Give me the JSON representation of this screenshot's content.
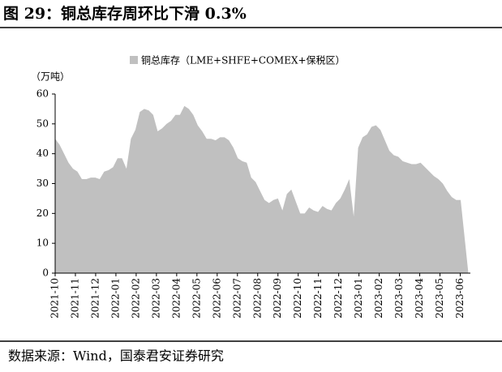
{
  "chart_data": {
    "type": "area",
    "title": "图 29：铜总库存周环比下滑 0.3%",
    "unit_label": "（万吨）",
    "source": "数据来源：Wind，国泰君安证券研究",
    "x": [
      0,
      0.22,
      0.44,
      0.66,
      0.88,
      1.1,
      1.32,
      1.54,
      1.76,
      1.98,
      2.2,
      2.42,
      2.64,
      2.86,
      3.08,
      3.3,
      3.52,
      3.74,
      3.96,
      4.18,
      4.4,
      4.62,
      4.84,
      5.06,
      5.28,
      5.5,
      5.72,
      5.94,
      6.16,
      6.38,
      6.6,
      6.82,
      7.04,
      7.26,
      7.48,
      7.7,
      7.92,
      8.14,
      8.36,
      8.58,
      8.8,
      9.02,
      9.24,
      9.46,
      9.68,
      9.9,
      10.12,
      10.34,
      10.56,
      10.78,
      11,
      11.22,
      11.44,
      11.66,
      11.88,
      12.1,
      12.32,
      12.54,
      12.76,
      12.98,
      13.2,
      13.42,
      13.64,
      13.86,
      14.08,
      14.3,
      14.52,
      14.74,
      14.96,
      15.18,
      15.4,
      15.62,
      15.84,
      16.06,
      16.28,
      16.5,
      16.72,
      16.94,
      17.16,
      17.38,
      17.6,
      17.82,
      18.04,
      18.26,
      18.48,
      18.7,
      18.92,
      19.14,
      19.36,
      19.58,
      19.8,
      20.02,
      20.4
    ],
    "series": [
      {
        "name": "铜总库存（LME+SHFE+COMEX+保税区）",
        "color": "#c0c0c0",
        "values": [
          45,
          43,
          40,
          37,
          35,
          34,
          31.5,
          31.5,
          32,
          32,
          31.5,
          34,
          34.5,
          35.5,
          38.5,
          38.5,
          35,
          45,
          48,
          54,
          55,
          54.5,
          53,
          47.5,
          48.5,
          50,
          51,
          53,
          53,
          56,
          55,
          53,
          49.5,
          47.5,
          45,
          45,
          44.5,
          45.5,
          45.5,
          44.5,
          42,
          38.5,
          37.5,
          37,
          32,
          30.5,
          27.5,
          24.5,
          23.5,
          24.5,
          25,
          21,
          26.5,
          28,
          24,
          20,
          20,
          22,
          21,
          20.5,
          22.5,
          21.5,
          21,
          23.5,
          25,
          28,
          31.5,
          19,
          42,
          45.5,
          46.5,
          49,
          49.5,
          48,
          44.5,
          41,
          39.5,
          39,
          37.5,
          37,
          36.5,
          36.5,
          37,
          35.5,
          34,
          32.5,
          31.5,
          30,
          27.5,
          25.5,
          24.5,
          24.5,
          0
        ]
      }
    ],
    "xlim": [
      0,
      20.5
    ],
    "xticks": [
      {
        "value": 0,
        "label": "2021-10"
      },
      {
        "value": 1,
        "label": "2021-11"
      },
      {
        "value": 2,
        "label": "2021-12"
      },
      {
        "value": 3,
        "label": "2022-01"
      },
      {
        "value": 4,
        "label": "2022-02"
      },
      {
        "value": 5,
        "label": "2022-03"
      },
      {
        "value": 6,
        "label": "2022-04"
      },
      {
        "value": 7,
        "label": "2022-05"
      },
      {
        "value": 8,
        "label": "2022-06"
      },
      {
        "value": 9,
        "label": "2022-07"
      },
      {
        "value": 10,
        "label": "2022-08"
      },
      {
        "value": 11,
        "label": "2022-09"
      },
      {
        "value": 12,
        "label": "2022-10"
      },
      {
        "value": 13,
        "label": "2022-11"
      },
      {
        "value": 14,
        "label": "2022-12"
      },
      {
        "value": 15,
        "label": "2023-01"
      },
      {
        "value": 16,
        "label": "2023-02"
      },
      {
        "value": 17,
        "label": "2023-03"
      },
      {
        "value": 18,
        "label": "2023-04"
      },
      {
        "value": 19,
        "label": "2023-05"
      },
      {
        "value": 20,
        "label": "2023-06"
      }
    ],
    "ylim": [
      0,
      60
    ],
    "yticks": [
      0,
      10,
      20,
      30,
      40,
      50,
      60
    ],
    "grid": false
  }
}
